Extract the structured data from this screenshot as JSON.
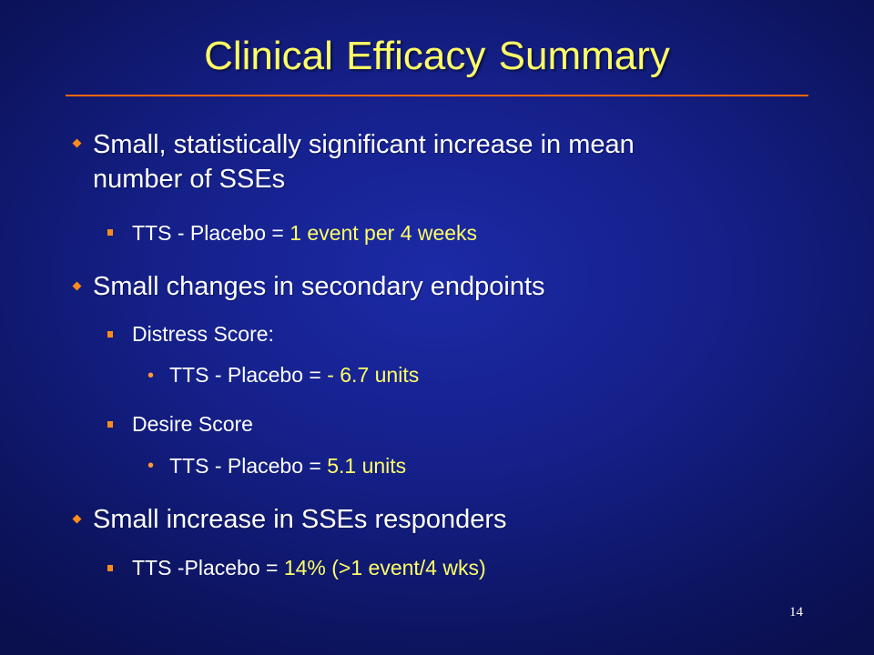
{
  "slide": {
    "title": "Clinical Efficacy Summary",
    "page_number": "14",
    "colors": {
      "background": "#15208a",
      "title": "#ffff66",
      "rule": "#ff6600",
      "bullet": "#ff8c1a",
      "highlight": "#ffff66",
      "body_text": "#ffffff"
    },
    "bullet_icons": {
      "level1": "diamond-bullet-icon",
      "level2": "square-bullet-icon",
      "level3": "dot-bullet-icon"
    },
    "bullets": [
      {
        "level": 1,
        "line1": "Small, statistically  significant increase in mean",
        "line2": "number of SSEs"
      },
      {
        "level": 2,
        "text": "TTS - Placebo = ",
        "highlight": "1 event per 4 weeks"
      },
      {
        "level": 1,
        "text": "Small changes in secondary endpoints"
      },
      {
        "level": 2,
        "text": "Distress Score:"
      },
      {
        "level": 3,
        "text": "TTS - Placebo = ",
        "highlight": "- 6.7 units"
      },
      {
        "level": 2,
        "text": "Desire Score"
      },
      {
        "level": 3,
        "text": "TTS - Placebo = ",
        "highlight": "5.1 units"
      },
      {
        "level": 1,
        "text": "Small increase in SSEs responders"
      },
      {
        "level": 2,
        "text": "TTS -Placebo = ",
        "highlight": "14% (>1 event/4 wks)"
      }
    ]
  }
}
